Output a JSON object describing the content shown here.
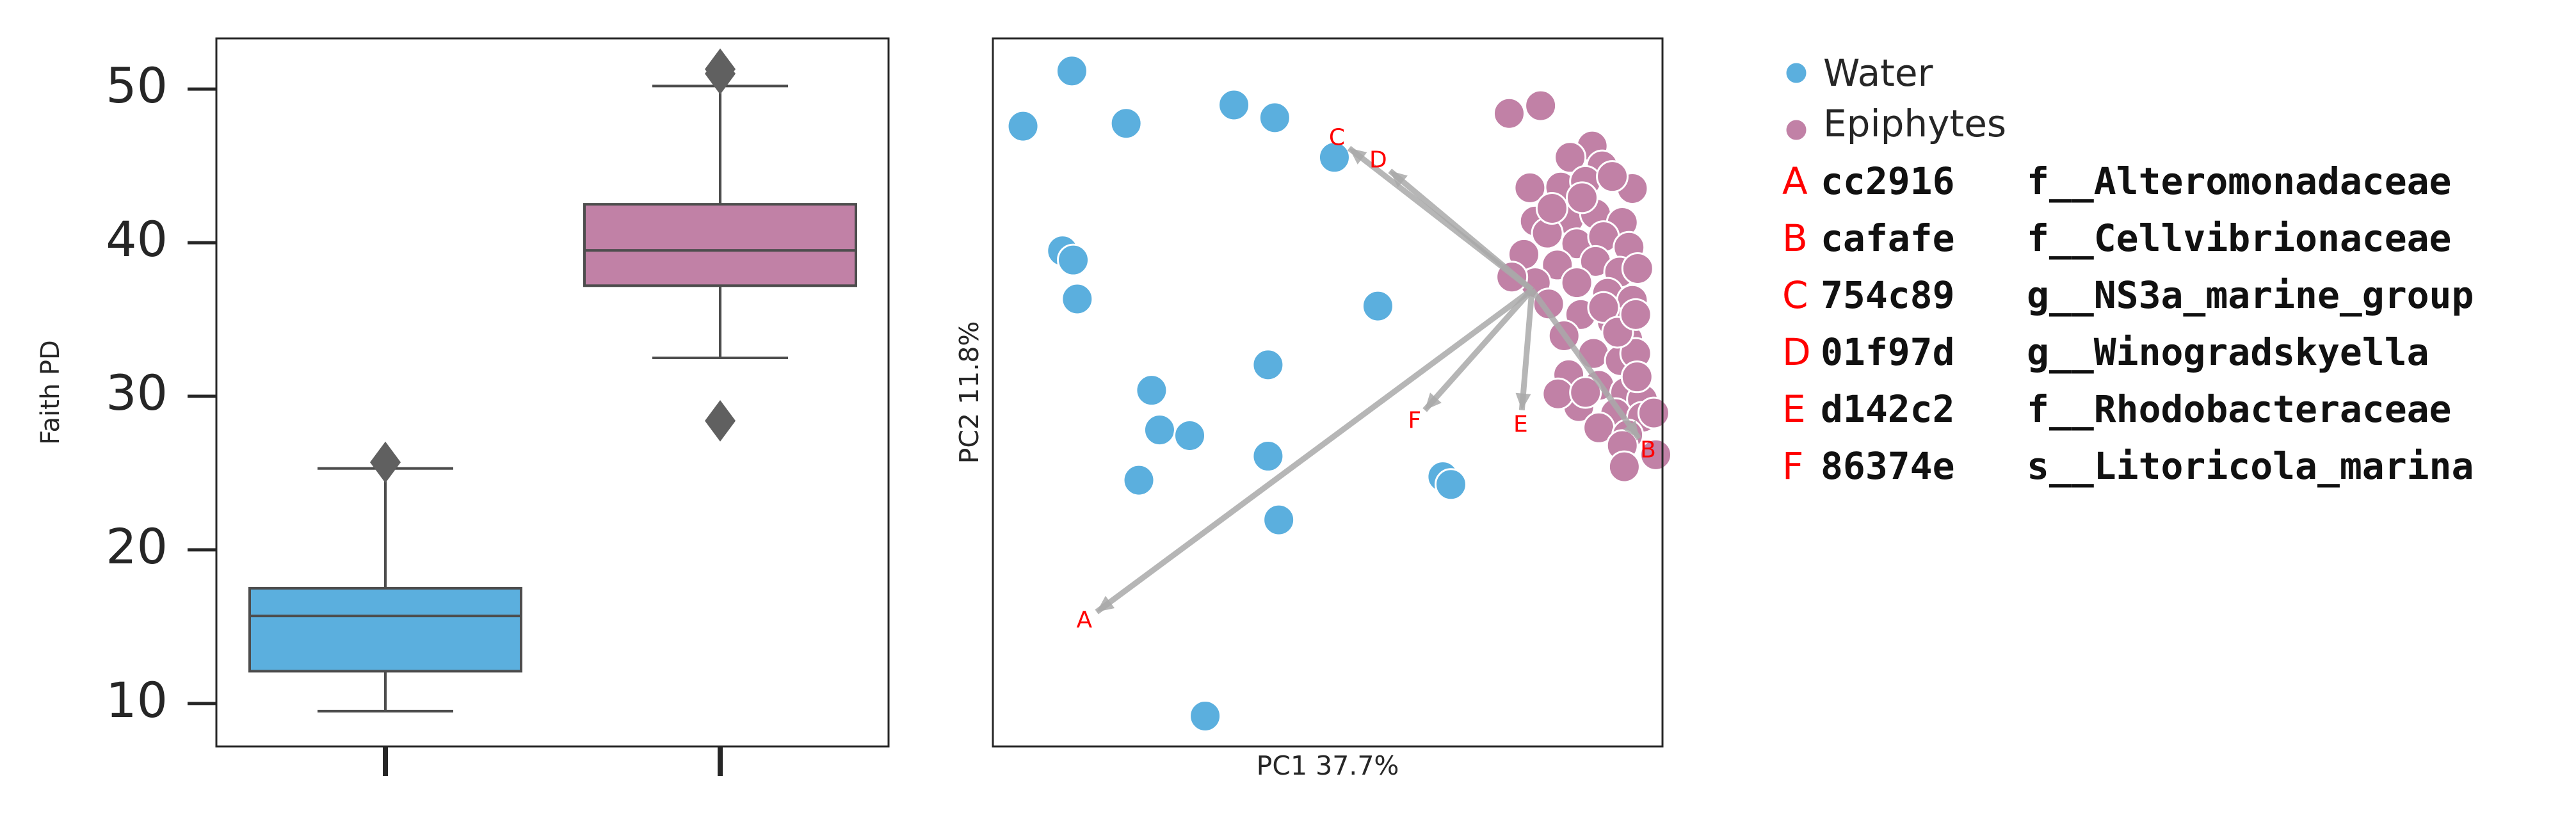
{
  "chart_data": [
    {
      "type": "box",
      "ylabel": "Faith PD",
      "xlabel": "",
      "ylim": [
        7.2,
        53.3
      ],
      "yticks": [
        10,
        20,
        30,
        40,
        50
      ],
      "categories": [
        "",
        ""
      ],
      "boxes": [
        {
          "group": "Water",
          "color": "#5bafde",
          "whisker_low": 9.5,
          "q1": 12.1,
          "median": 15.7,
          "q3": 17.5,
          "whisker_high": 25.3,
          "outliers": [
            25.7
          ]
        },
        {
          "group": "Epiphytes",
          "color": "#c181a6",
          "whisker_low": 32.5,
          "q1": 37.2,
          "median": 39.5,
          "q3": 42.5,
          "whisker_high": 50.2,
          "outliers": [
            28.4,
            51.0,
            51.3
          ]
        }
      ],
      "grid": false
    },
    {
      "type": "scatter",
      "xlabel": "PC1 37.7%",
      "ylabel": "PC2 11.8%",
      "xlim": [
        0,
        1
      ],
      "ylim": [
        0,
        1
      ],
      "grid": false,
      "series": [
        {
          "name": "Water",
          "color": "#5bafde",
          "points": [
            [
              0.045,
              0.876
            ],
            [
              0.118,
              0.954
            ],
            [
              0.199,
              0.88
            ],
            [
              0.36,
              0.906
            ],
            [
              0.421,
              0.888
            ],
            [
              0.51,
              0.832
            ],
            [
              0.104,
              0.7
            ],
            [
              0.12,
              0.687
            ],
            [
              0.126,
              0.632
            ],
            [
              0.575,
              0.622
            ],
            [
              0.411,
              0.539
            ],
            [
              0.237,
              0.503
            ],
            [
              0.249,
              0.447
            ],
            [
              0.294,
              0.439
            ],
            [
              0.411,
              0.41
            ],
            [
              0.218,
              0.376
            ],
            [
              0.672,
              0.381
            ],
            [
              0.684,
              0.37
            ],
            [
              0.427,
              0.32
            ],
            [
              0.317,
              0.043
            ]
          ]
        },
        {
          "name": "Epiphytes",
          "color": "#c181a6",
          "points": [
            [
              0.771,
              0.894
            ],
            [
              0.818,
              0.905
            ],
            [
              0.895,
              0.848
            ],
            [
              0.862,
              0.832
            ],
            [
              0.91,
              0.82
            ],
            [
              0.955,
              0.788
            ],
            [
              0.802,
              0.789
            ],
            [
              0.848,
              0.79
            ],
            [
              0.885,
              0.798
            ],
            [
              0.925,
              0.805
            ],
            [
              0.81,
              0.742
            ],
            [
              0.86,
              0.745
            ],
            [
              0.9,
              0.752
            ],
            [
              0.94,
              0.74
            ],
            [
              0.828,
              0.725
            ],
            [
              0.872,
              0.71
            ],
            [
              0.912,
              0.72
            ],
            [
              0.95,
              0.705
            ],
            [
              0.793,
              0.695
            ],
            [
              0.843,
              0.68
            ],
            [
              0.9,
              0.685
            ],
            [
              0.936,
              0.67
            ],
            [
              0.81,
              0.655
            ],
            [
              0.872,
              0.655
            ],
            [
              0.918,
              0.64
            ],
            [
              0.955,
              0.63
            ],
            [
              0.775,
              0.663
            ],
            [
              0.83,
              0.625
            ],
            [
              0.878,
              0.61
            ],
            [
              0.925,
              0.6
            ],
            [
              0.948,
              0.575
            ],
            [
              0.853,
              0.58
            ],
            [
              0.897,
              0.555
            ],
            [
              0.937,
              0.545
            ],
            [
              0.96,
              0.555
            ],
            [
              0.86,
              0.525
            ],
            [
              0.905,
              0.51
            ],
            [
              0.945,
              0.5
            ],
            [
              0.97,
              0.49
            ],
            [
              0.875,
              0.48
            ],
            [
              0.93,
              0.47
            ],
            [
              0.97,
              0.465
            ],
            [
              0.905,
              0.45
            ],
            [
              0.948,
              0.44
            ],
            [
              0.99,
              0.412
            ],
            [
              0.94,
              0.425
            ],
            [
              0.943,
              0.395
            ],
            [
              0.844,
              0.498
            ],
            [
              0.885,
              0.5
            ],
            [
              0.912,
              0.62
            ],
            [
              0.963,
              0.675
            ],
            [
              0.933,
              0.585
            ],
            [
              0.962,
              0.522
            ],
            [
              0.88,
              0.775
            ],
            [
              0.835,
              0.76
            ],
            [
              0.96,
              0.61
            ],
            [
              0.987,
              0.471
            ]
          ]
        }
      ],
      "biplot_origin": [
        0.805,
        0.645
      ],
      "arrows": [
        {
          "label": "A",
          "x": 0.155,
          "y": 0.19
        },
        {
          "label": "B",
          "x": 0.965,
          "y": 0.435
        },
        {
          "label": "C",
          "x": 0.532,
          "y": 0.845
        },
        {
          "label": "D",
          "x": 0.593,
          "y": 0.813
        },
        {
          "label": "E",
          "x": 0.79,
          "y": 0.475
        },
        {
          "label": "F",
          "x": 0.645,
          "y": 0.475
        }
      ]
    }
  ],
  "legend": {
    "items": [
      {
        "label": "Water",
        "color": "#5bafde"
      },
      {
        "label": "Epiphytes",
        "color": "#c181a6"
      }
    ],
    "features": [
      {
        "letter": "A",
        "id": "cc2916",
        "taxon": "f__Alteromonadaceae"
      },
      {
        "letter": "B",
        "id": "cafafe",
        "taxon": "f__Cellvibrionaceae"
      },
      {
        "letter": "C",
        "id": "754c89",
        "taxon": "g__NS3a_marine_group"
      },
      {
        "letter": "D",
        "id": "01f97d",
        "taxon": "g__Winogradskyella"
      },
      {
        "letter": "E",
        "id": "d142c2",
        "taxon": "f__Rhodobacteraceae"
      },
      {
        "letter": "F",
        "id": "86374e",
        "taxon": "s__Litoricola_marina"
      }
    ]
  },
  "colors": {
    "arrow": "#a9a9a9",
    "label": "#ff0000",
    "whisker": "#4d4d4d",
    "outlier": "#606060"
  }
}
